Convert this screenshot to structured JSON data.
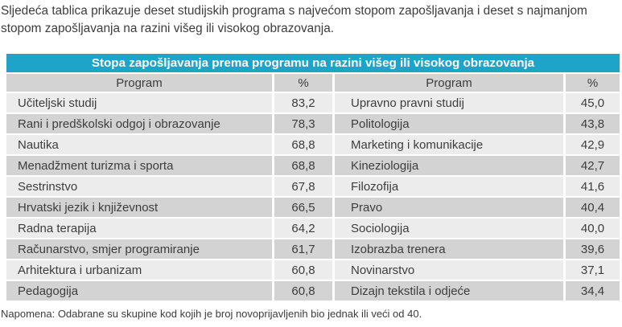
{
  "intro": "Sljedeća tablica prikazuje deset studijskih programa s najvećom stopom zapošljavanja i deset s najmanjom stopom zapošljavanja na razini višeg ili visokog obrazovanja.",
  "table": {
    "title": "Stopa zapošljavanja prema programu na razini višeg ili visokog obrazovanja",
    "headers": [
      "Program",
      "%",
      "Program",
      "%"
    ],
    "rows": [
      {
        "program_left": "Učiteljski studij",
        "pct_left": "83,2",
        "program_right": "Upravno pravni studij",
        "pct_right": "45,0"
      },
      {
        "program_left": "Rani i predškolski odgoj i obrazovanje",
        "pct_left": "78,3",
        "program_right": "Politologija",
        "pct_right": "43,8"
      },
      {
        "program_left": "Nautika",
        "pct_left": "68,8",
        "program_right": "Marketing i komunikacije",
        "pct_right": "42,9"
      },
      {
        "program_left": "Menadžment turizma i sporta",
        "pct_left": "68,8",
        "program_right": "Kineziologija",
        "pct_right": "42,7"
      },
      {
        "program_left": "Sestrinstvo",
        "pct_left": "67,8",
        "program_right": "Filozofija",
        "pct_right": "41,6"
      },
      {
        "program_left": "Hrvatski jezik i književnost",
        "pct_left": "66,5",
        "program_right": "Pravo",
        "pct_right": "40,4"
      },
      {
        "program_left": "Radna terapija",
        "pct_left": "64,2",
        "program_right": "Sociologija",
        "pct_right": "40,0"
      },
      {
        "program_left": "Računarstvo, smjer programiranje",
        "pct_left": "61,7",
        "program_right": "Izobrazba trenera",
        "pct_right": "39,6"
      },
      {
        "program_left": "Arhitektura i urbanizam",
        "pct_left": "60,8",
        "program_right": "Novinarstvo",
        "pct_right": "37,1"
      },
      {
        "program_left": "Pedagogija",
        "pct_left": "60,8",
        "program_right": "Dizajn tekstila i odjeće",
        "pct_right": "34,4"
      }
    ]
  },
  "note": "Napomena: Odabrane su skupine kod kojih je broj novoprijavljenih bio jednak ili veći od 40.",
  "colors": {
    "title_bg": "#1ea4c8",
    "title_text": "#ffffff",
    "row_gray": "#d3d3d3",
    "row_light": "#ececec"
  }
}
